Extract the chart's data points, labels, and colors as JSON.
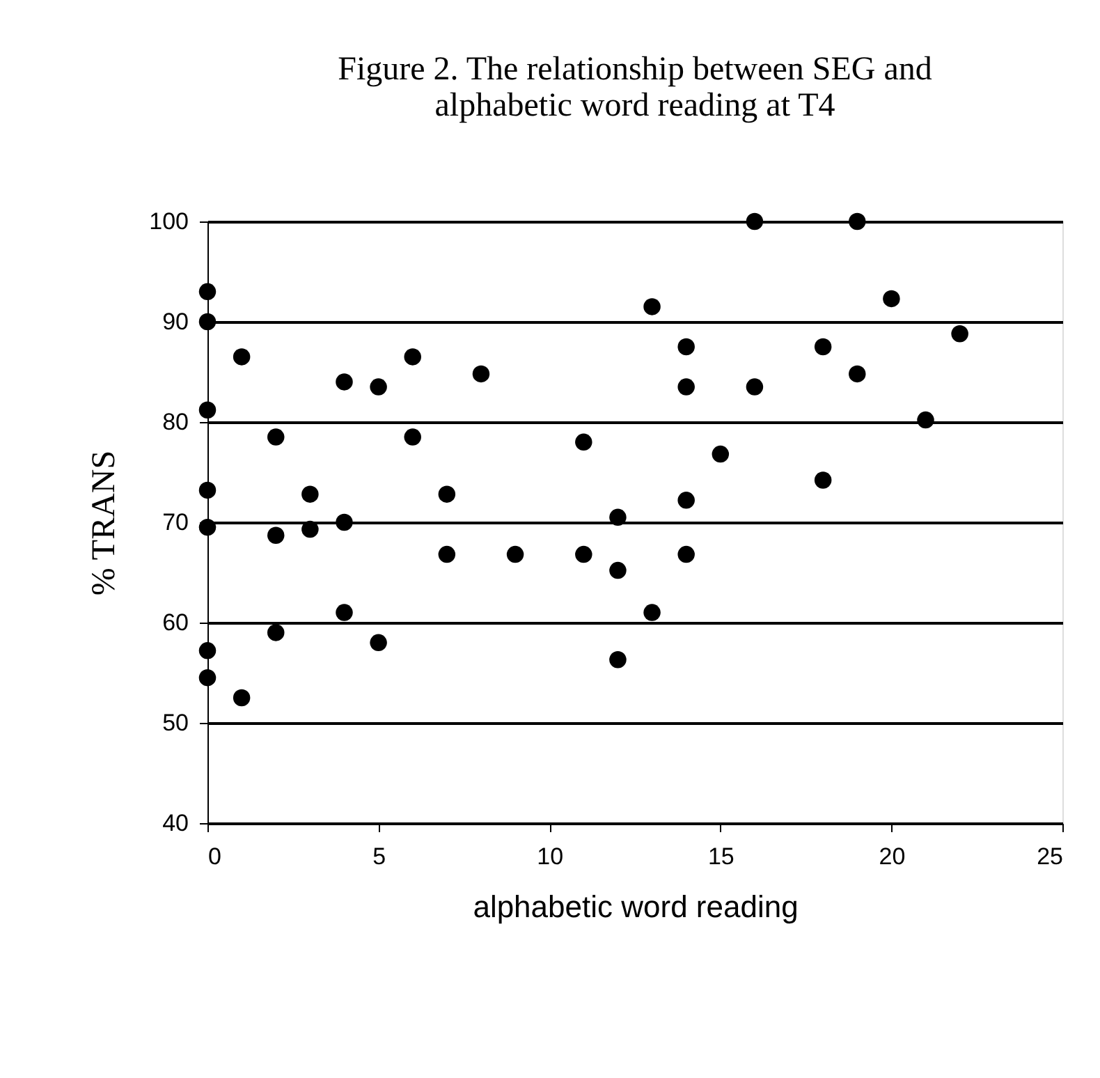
{
  "chart_data": {
    "type": "scatter",
    "title": "Figure 2. The relationship between SEG and\nalphabetic word reading at T4",
    "xlabel": "alphabetic word reading",
    "ylabel": "% TRANS",
    "x": [
      0,
      0,
      0,
      0,
      0,
      0,
      0,
      1,
      1,
      2,
      2,
      2,
      3,
      3,
      4,
      4,
      4,
      5,
      5,
      6,
      6,
      7,
      7,
      8,
      9,
      11,
      11,
      12,
      12,
      12,
      13,
      13,
      14,
      14,
      14,
      14,
      15,
      16,
      16,
      18,
      18,
      19,
      19,
      20,
      21,
      22
    ],
    "values": [
      93,
      90,
      81.2,
      73.2,
      69.5,
      57.2,
      54.5,
      86.5,
      52.5,
      78.5,
      68.7,
      59,
      72.8,
      69.3,
      84,
      70,
      61,
      83.5,
      58,
      86.5,
      78.5,
      72.8,
      66.8,
      84.8,
      66.8,
      78,
      66.8,
      70.5,
      65.2,
      56.3,
      91.5,
      61,
      87.5,
      83.5,
      72.2,
      66.8,
      76.8,
      100,
      83.5,
      87.5,
      74.2,
      100,
      84.8,
      92.3,
      80.2,
      88.8
    ],
    "color": "#000000",
    "marker": "circle",
    "xlim": [
      0,
      25
    ],
    "xticks": [
      0,
      5,
      10,
      15,
      20,
      25
    ],
    "ylim": [
      40,
      100
    ],
    "yticks": [
      40,
      50,
      60,
      70,
      80,
      90,
      100
    ],
    "grid": "y"
  }
}
